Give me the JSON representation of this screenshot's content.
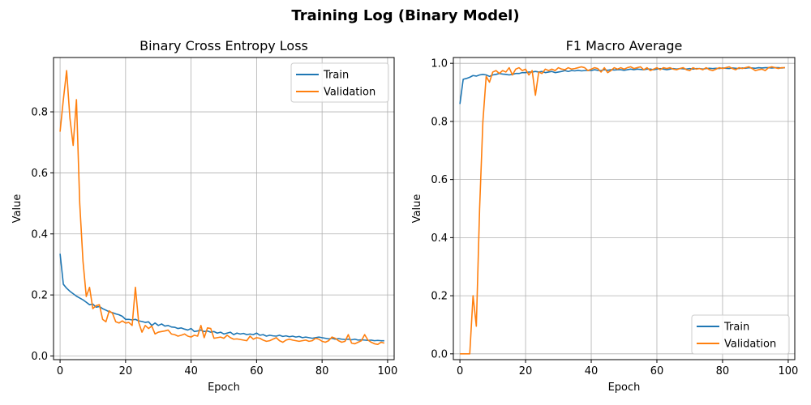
{
  "figure": {
    "title": "Training Log (Binary Model)"
  },
  "chart_data": [
    {
      "type": "line",
      "title": "Binary Cross Entropy Loss",
      "xlabel": "Epoch",
      "ylabel": "Value",
      "xlim": [
        -2,
        102
      ],
      "ylim": [
        -0.012,
        0.978
      ],
      "xticks": [
        0,
        20,
        40,
        60,
        80,
        100
      ],
      "yticks": [
        0.0,
        0.2,
        0.4,
        0.6,
        0.8
      ],
      "grid": true,
      "legend_position": "top-right",
      "x_start": 0,
      "series": [
        {
          "name": "Train",
          "color": "#1f77b4",
          "values": [
            0.335,
            0.235,
            0.222,
            0.212,
            0.204,
            0.196,
            0.19,
            0.184,
            0.176,
            0.168,
            0.17,
            0.16,
            0.162,
            0.155,
            0.15,
            0.145,
            0.142,
            0.138,
            0.135,
            0.13,
            0.12,
            0.12,
            0.118,
            0.12,
            0.115,
            0.113,
            0.11,
            0.112,
            0.1,
            0.108,
            0.1,
            0.105,
            0.098,
            0.1,
            0.095,
            0.094,
            0.09,
            0.092,
            0.088,
            0.085,
            0.09,
            0.08,
            0.082,
            0.085,
            0.08,
            0.082,
            0.078,
            0.08,
            0.075,
            0.078,
            0.072,
            0.075,
            0.078,
            0.07,
            0.075,
            0.072,
            0.074,
            0.07,
            0.072,
            0.07,
            0.075,
            0.068,
            0.07,
            0.065,
            0.068,
            0.066,
            0.065,
            0.068,
            0.064,
            0.066,
            0.063,
            0.065,
            0.062,
            0.064,
            0.06,
            0.062,
            0.06,
            0.058,
            0.06,
            0.062,
            0.06,
            0.058,
            0.056,
            0.058,
            0.055,
            0.057,
            0.055,
            0.054,
            0.055,
            0.053,
            0.055,
            0.052,
            0.053,
            0.052,
            0.051,
            0.052,
            0.05,
            0.051,
            0.05,
            0.05
          ]
        },
        {
          "name": "Validation",
          "color": "#ff7f0e",
          "values": [
            0.735,
            0.84,
            0.935,
            0.78,
            0.69,
            0.84,
            0.5,
            0.31,
            0.195,
            0.225,
            0.155,
            0.165,
            0.168,
            0.12,
            0.112,
            0.148,
            0.14,
            0.112,
            0.108,
            0.115,
            0.108,
            0.11,
            0.1,
            0.225,
            0.11,
            0.078,
            0.1,
            0.09,
            0.098,
            0.072,
            0.078,
            0.08,
            0.082,
            0.085,
            0.072,
            0.07,
            0.065,
            0.068,
            0.072,
            0.065,
            0.062,
            0.068,
            0.065,
            0.1,
            0.06,
            0.092,
            0.09,
            0.058,
            0.06,
            0.062,
            0.058,
            0.068,
            0.06,
            0.055,
            0.056,
            0.054,
            0.052,
            0.05,
            0.065,
            0.055,
            0.06,
            0.058,
            0.052,
            0.048,
            0.05,
            0.055,
            0.06,
            0.05,
            0.045,
            0.052,
            0.055,
            0.052,
            0.05,
            0.048,
            0.05,
            0.052,
            0.048,
            0.05,
            0.058,
            0.055,
            0.048,
            0.045,
            0.05,
            0.062,
            0.058,
            0.05,
            0.045,
            0.048,
            0.07,
            0.042,
            0.04,
            0.045,
            0.05,
            0.07,
            0.052,
            0.045,
            0.04,
            0.038,
            0.045,
            0.042
          ]
        }
      ]
    },
    {
      "type": "line",
      "title": "F1 Macro Average",
      "xlabel": "Epoch",
      "ylabel": "Value",
      "xlim": [
        -2,
        102
      ],
      "ylim": [
        -0.02,
        1.02
      ],
      "xticks": [
        0,
        20,
        40,
        60,
        80,
        100
      ],
      "yticks": [
        0.0,
        0.2,
        0.4,
        0.6,
        0.8,
        1.0
      ],
      "grid": true,
      "legend_position": "bottom-right",
      "x_start": 0,
      "series": [
        {
          "name": "Train",
          "color": "#1f77b4",
          "values": [
            0.86,
            0.945,
            0.948,
            0.952,
            0.958,
            0.956,
            0.96,
            0.962,
            0.96,
            0.955,
            0.96,
            0.962,
            0.965,
            0.963,
            0.962,
            0.96,
            0.962,
            0.965,
            0.965,
            0.968,
            0.968,
            0.97,
            0.97,
            0.972,
            0.97,
            0.972,
            0.968,
            0.97,
            0.972,
            0.968,
            0.97,
            0.972,
            0.975,
            0.972,
            0.975,
            0.974,
            0.976,
            0.974,
            0.975,
            0.976,
            0.975,
            0.978,
            0.976,
            0.975,
            0.978,
            0.976,
            0.978,
            0.977,
            0.978,
            0.978,
            0.976,
            0.978,
            0.98,
            0.978,
            0.98,
            0.979,
            0.978,
            0.98,
            0.98,
            0.978,
            0.98,
            0.982,
            0.98,
            0.978,
            0.98,
            0.982,
            0.98,
            0.982,
            0.981,
            0.98,
            0.982,
            0.98,
            0.982,
            0.982,
            0.98,
            0.982,
            0.983,
            0.982,
            0.983,
            0.982,
            0.984,
            0.983,
            0.982,
            0.984,
            0.983,
            0.982,
            0.984,
            0.983,
            0.985,
            0.984,
            0.983,
            0.985,
            0.984,
            0.985,
            0.985,
            0.984,
            0.985,
            0.985,
            0.984,
            0.985
          ]
        },
        {
          "name": "Validation",
          "color": "#ff7f0e",
          "values": [
            0.0,
            0.0,
            0.0,
            0.0,
            0.2,
            0.095,
            0.5,
            0.8,
            0.955,
            0.935,
            0.97,
            0.975,
            0.965,
            0.975,
            0.97,
            0.985,
            0.96,
            0.98,
            0.985,
            0.975,
            0.98,
            0.96,
            0.975,
            0.89,
            0.97,
            0.965,
            0.98,
            0.975,
            0.98,
            0.975,
            0.985,
            0.98,
            0.978,
            0.985,
            0.98,
            0.982,
            0.985,
            0.988,
            0.985,
            0.975,
            0.98,
            0.985,
            0.982,
            0.97,
            0.985,
            0.968,
            0.975,
            0.985,
            0.98,
            0.985,
            0.98,
            0.985,
            0.988,
            0.982,
            0.985,
            0.988,
            0.978,
            0.985,
            0.975,
            0.98,
            0.985,
            0.978,
            0.985,
            0.982,
            0.985,
            0.98,
            0.978,
            0.982,
            0.985,
            0.978,
            0.975,
            0.985,
            0.98,
            0.982,
            0.978,
            0.985,
            0.978,
            0.975,
            0.98,
            0.985,
            0.982,
            0.985,
            0.988,
            0.982,
            0.978,
            0.985,
            0.982,
            0.985,
            0.988,
            0.982,
            0.975,
            0.978,
            0.98,
            0.975,
            0.985,
            0.988,
            0.985,
            0.982,
            0.985,
            0.985
          ]
        }
      ]
    }
  ]
}
